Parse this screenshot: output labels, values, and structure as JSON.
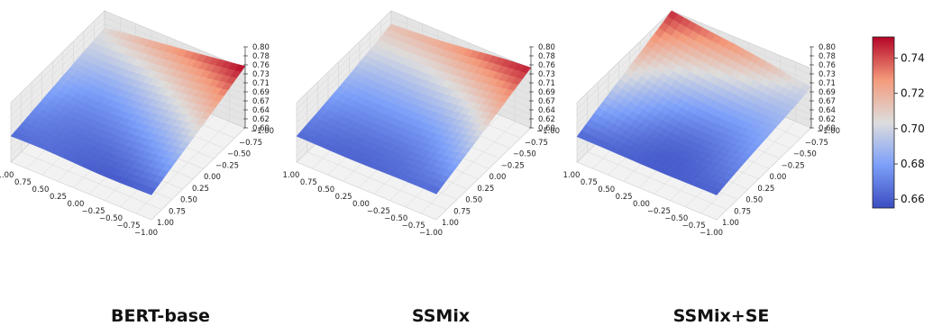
{
  "chart_data": [
    {
      "type": "surface",
      "title": "BERT-base",
      "x_ticks": [
        "1.00",
        "0.75",
        "0.50",
        "0.25",
        "0.00",
        "−0.25",
        "−0.50",
        "−0.75",
        "−1.00"
      ],
      "y_ticks": [
        "−1.00",
        "−0.75",
        "−0.50",
        "−0.25",
        "0.00",
        "0.25",
        "0.50",
        "0.75",
        "1.00"
      ],
      "z_ticks": [
        "0.80",
        "0.78",
        "0.76",
        "0.73",
        "0.71",
        "0.69",
        "0.67",
        "0.64",
        "0.62",
        "0.60"
      ],
      "zlim": [
        0.6,
        0.8
      ],
      "corner_values": {
        "x1_y1": 0.664,
        "x1_ym1": 0.705,
        "xm1_y1": 0.66,
        "xm1_ym1": 0.752
      },
      "min_value": 0.655
    },
    {
      "type": "surface",
      "title": "SSMix",
      "x_ticks": [
        "1.00",
        "0.75",
        "0.50",
        "0.25",
        "0.00",
        "−0.25",
        "−0.50",
        "−0.75",
        "−1.00"
      ],
      "y_ticks": [
        "−1.00",
        "−0.75",
        "−0.50",
        "−0.25",
        "0.00",
        "0.25",
        "0.50",
        "0.75",
        "1.00"
      ],
      "z_ticks": [
        "0.80",
        "0.78",
        "0.76",
        "0.73",
        "0.71",
        "0.69",
        "0.67",
        "0.64",
        "0.62",
        "0.60"
      ],
      "zlim": [
        0.6,
        0.8
      ],
      "corner_values": {
        "x1_y1": 0.663,
        "x1_ym1": 0.712,
        "xm1_y1": 0.663,
        "xm1_ym1": 0.748
      },
      "min_value": 0.652
    },
    {
      "type": "surface",
      "title": "SSMix+SE",
      "x_ticks": [
        "1.00",
        "0.75",
        "0.50",
        "0.25",
        "0.00",
        "−0.25",
        "−0.50",
        "−0.75",
        "−1.00"
      ],
      "y_ticks": [
        "−1.00",
        "−0.75",
        "−0.50",
        "−0.25",
        "0.00",
        "0.25",
        "0.50",
        "0.75",
        "1.00"
      ],
      "z_ticks": [
        "0.80",
        "0.78",
        "0.76",
        "0.73",
        "0.71",
        "0.69",
        "0.67",
        "0.64",
        "0.62",
        "0.60"
      ],
      "zlim": [
        0.6,
        0.8
      ],
      "corner_values": {
        "x1_y1": 0.662,
        "x1_ym1": 0.748,
        "xm1_y1": 0.66,
        "xm1_ym1": 0.702
      },
      "min_value": 0.651
    }
  ],
  "colorbar": {
    "colormap": "coolwarm",
    "range": [
      0.655,
      0.752
    ],
    "ticks": [
      "0.66",
      "0.68",
      "0.70",
      "0.72",
      "0.74"
    ],
    "tick_values": [
      0.66,
      0.68,
      0.7,
      0.72,
      0.74
    ]
  },
  "colors": {
    "pane": "#f2f2f2",
    "grid": "#d6d6d6",
    "low": "#3b4cc0",
    "mid": "#dddddd",
    "high": "#b40426"
  }
}
